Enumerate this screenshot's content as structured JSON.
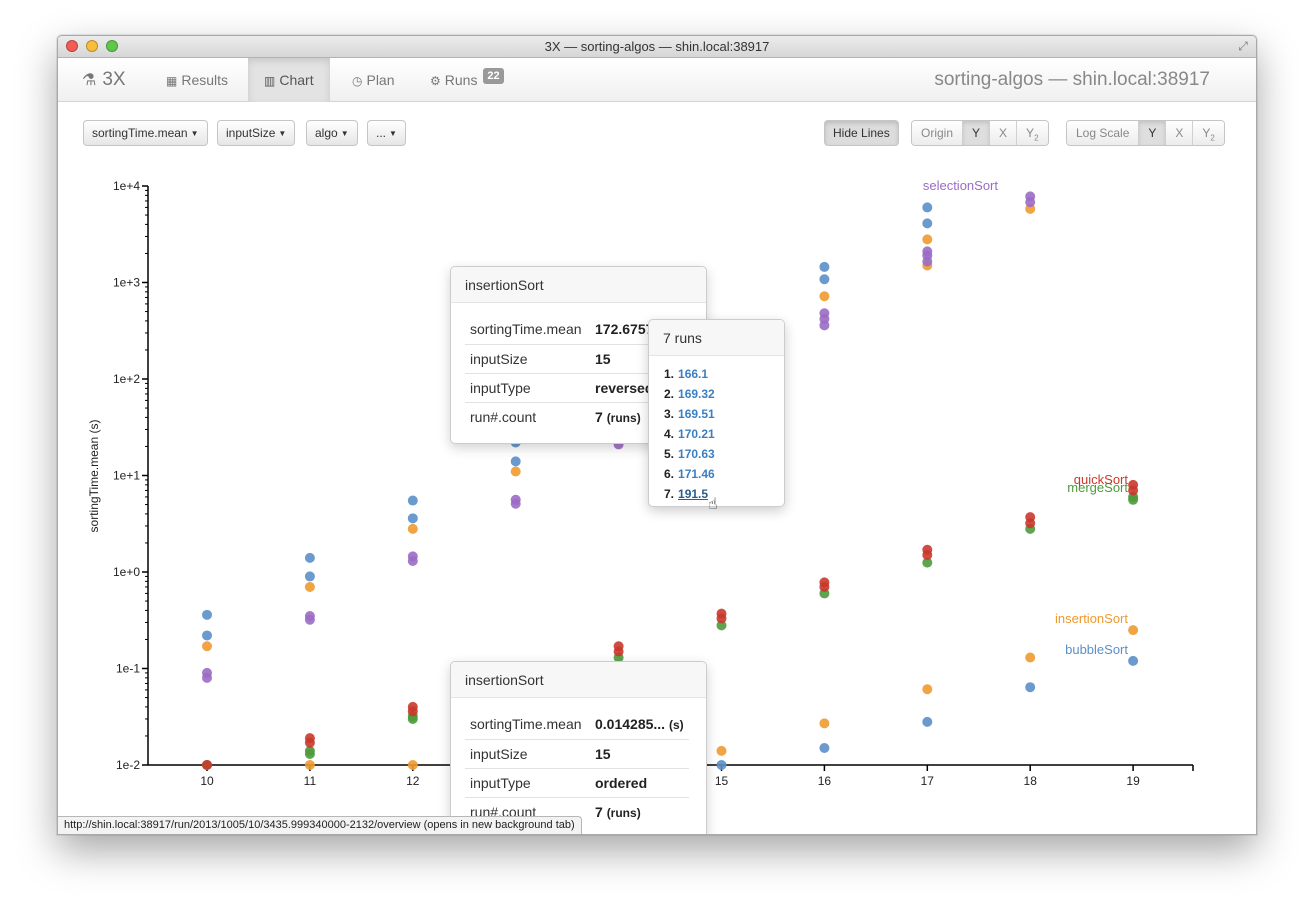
{
  "window": {
    "title": "3X — sorting-algos — shin.local:38917"
  },
  "navbar": {
    "brand": "3X",
    "tabs": [
      {
        "label": "Results",
        "icon": "table-icon"
      },
      {
        "label": "Chart",
        "icon": "bar-chart-icon",
        "active": true
      },
      {
        "label": "Plan",
        "icon": "clock-icon"
      },
      {
        "label": "Runs",
        "icon": "gears-icon",
        "badge": "22"
      }
    ],
    "right_title": "sorting-algos — shin.local:38917"
  },
  "toolbar": {
    "y_axis_field": "sortingTime.mean",
    "x_axis_field": "inputSize",
    "series_field": "algo",
    "more": "...",
    "hide_lines": "Hide Lines",
    "origin_label": "Origin",
    "origin_y": "Y",
    "origin_x": "X",
    "origin_y2": "Y",
    "origin_y2_sub": "2",
    "logscale_label": "Log Scale",
    "log_y": "Y",
    "log_x": "X",
    "log_y2": "Y",
    "log_y2_sub": "2"
  },
  "chart_data": {
    "type": "scatter",
    "ylabel": "sortingTime.mean (s)",
    "xlabel": "",
    "yscale": "log",
    "ylim": [
      0.01,
      10000
    ],
    "y_ticks": [
      "1e-2",
      "1e-1",
      "1e+0",
      "1e+1",
      "1e+2",
      "1e+3",
      "1e+4"
    ],
    "x_ticks": [
      10,
      11,
      12,
      13,
      14,
      15,
      16,
      17,
      18,
      19
    ],
    "x_ticks_visible": [
      "10",
      "11",
      "12",
      "15",
      "16",
      "17",
      "18",
      "19"
    ],
    "series": [
      {
        "name": "bubbleSort",
        "color": "#5b8fc9",
        "points": [
          [
            10,
            0.36
          ],
          [
            10,
            0.22
          ],
          [
            11,
            1.4
          ],
          [
            11,
            0.9
          ],
          [
            12,
            5.5
          ],
          [
            12,
            3.6
          ],
          [
            13,
            22
          ],
          [
            13,
            14
          ],
          [
            15,
            0.01
          ],
          [
            16,
            0.015
          ],
          [
            16,
            1450
          ],
          [
            16,
            1080
          ],
          [
            17,
            0.028
          ],
          [
            17,
            6000
          ],
          [
            17,
            4100
          ],
          [
            18,
            0.064
          ],
          [
            19,
            0.12
          ]
        ]
      },
      {
        "name": "insertionSort",
        "color": "#ee9a30",
        "points": [
          [
            10,
            0.17
          ],
          [
            10,
            0.01
          ],
          [
            11,
            0.7
          ],
          [
            11,
            0.01
          ],
          [
            12,
            2.8
          ],
          [
            12,
            0.01
          ],
          [
            13,
            11
          ],
          [
            15,
            0.014
          ],
          [
            16,
            0.027
          ],
          [
            16,
            720
          ],
          [
            17,
            0.061
          ],
          [
            17,
            2800
          ],
          [
            17,
            1500
          ],
          [
            18,
            0.13
          ],
          [
            18,
            5800
          ],
          [
            19,
            0.25
          ]
        ]
      },
      {
        "name": "selectionSort",
        "color": "#9b6bc4",
        "points": [
          [
            10,
            0.09
          ],
          [
            10,
            0.08
          ],
          [
            11,
            0.35
          ],
          [
            11,
            0.32
          ],
          [
            12,
            1.45
          ],
          [
            12,
            1.3
          ],
          [
            13,
            5.6
          ],
          [
            13,
            5.1
          ],
          [
            14,
            21
          ],
          [
            16,
            480
          ],
          [
            16,
            420
          ],
          [
            16,
            360
          ],
          [
            17,
            2100
          ],
          [
            17,
            1900
          ],
          [
            17,
            1650
          ],
          [
            18,
            7800
          ],
          [
            18,
            6800
          ]
        ]
      },
      {
        "name": "mergeSort",
        "color": "#4e9a3c",
        "points": [
          [
            10,
            0.01
          ],
          [
            11,
            0.014
          ],
          [
            11,
            0.013
          ],
          [
            12,
            0.03
          ],
          [
            12,
            0.032
          ],
          [
            14,
            0.13
          ],
          [
            15,
            0.28
          ],
          [
            16,
            0.6
          ],
          [
            17,
            1.25
          ],
          [
            18,
            2.8
          ],
          [
            19,
            5.6
          ],
          [
            19,
            6.0
          ]
        ]
      },
      {
        "name": "quickSort",
        "color": "#c9392c",
        "points": [
          [
            10,
            0.01
          ],
          [
            11,
            0.019
          ],
          [
            11,
            0.017
          ],
          [
            12,
            0.04
          ],
          [
            12,
            0.036
          ],
          [
            14,
            0.17
          ],
          [
            14,
            0.15
          ],
          [
            15,
            0.37
          ],
          [
            15,
            0.33
          ],
          [
            16,
            0.78
          ],
          [
            16,
            0.7
          ],
          [
            17,
            1.7
          ],
          [
            17,
            1.5
          ],
          [
            18,
            3.7
          ],
          [
            18,
            3.2
          ],
          [
            19,
            8.0
          ],
          [
            19,
            7.0
          ]
        ]
      }
    ]
  },
  "tooltip_top": {
    "title": "insertionSort",
    "rows": [
      {
        "key": "sortingTime.mean",
        "value": "172.6757"
      },
      {
        "key": "inputSize",
        "value": "15"
      },
      {
        "key": "inputType",
        "value": "reversed"
      },
      {
        "key": "run#.count",
        "value": "7",
        "unit": "(runs)"
      }
    ]
  },
  "runs_popup": {
    "title": "7 runs",
    "items": [
      {
        "num": "1.",
        "value": "166.1"
      },
      {
        "num": "2.",
        "value": "169.32"
      },
      {
        "num": "3.",
        "value": "169.51"
      },
      {
        "num": "4.",
        "value": "170.21"
      },
      {
        "num": "5.",
        "value": "170.63"
      },
      {
        "num": "6.",
        "value": "171.46"
      },
      {
        "num": "7.",
        "value": "191.5"
      }
    ]
  },
  "tooltip_bottom": {
    "title": "insertionSort",
    "rows": [
      {
        "key": "sortingTime.mean",
        "value": "0.014285...",
        "unit": "(s)"
      },
      {
        "key": "inputSize",
        "value": "15"
      },
      {
        "key": "inputType",
        "value": "ordered"
      },
      {
        "key": "run#.count",
        "value": "7",
        "unit": "(runs)"
      }
    ]
  },
  "status": {
    "url": "http://shin.local:38917/run/2013/1005/10/3435.999340000-2132/overview (opens in new background tab)"
  }
}
